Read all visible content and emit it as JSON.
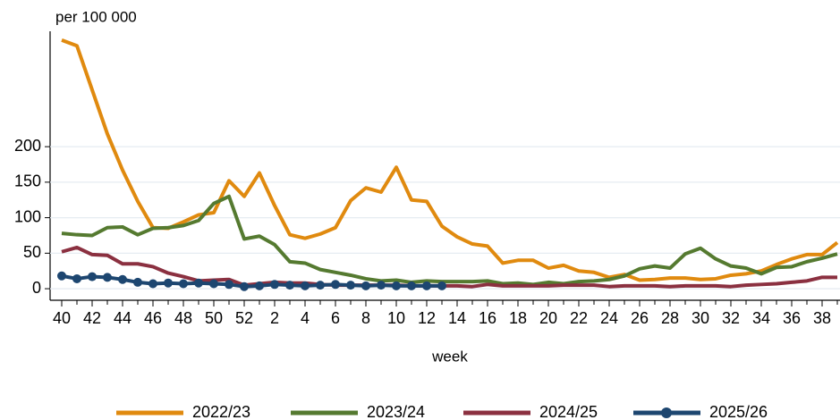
{
  "chart_data": {
    "type": "line",
    "y_label": "per 100 000",
    "x_label": "week",
    "categories": [
      "40",
      null,
      "42",
      null,
      "44",
      null,
      "46",
      null,
      "48",
      null,
      "50",
      null,
      "52",
      null,
      "2",
      null,
      "4",
      null,
      "6",
      null,
      "8",
      null,
      "10",
      null,
      "12",
      null,
      "14",
      null,
      "16",
      null,
      "18",
      null,
      "20",
      null,
      "22",
      null,
      "24",
      null,
      "26",
      null,
      "28",
      null,
      "30",
      null,
      "32",
      null,
      "34",
      null,
      "36",
      null,
      "38",
      null
    ],
    "ylim": [
      -15,
      365
    ],
    "yticks": [
      0,
      50,
      100,
      150,
      200
    ],
    "grid": true,
    "legend": "bottom",
    "series": [
      {
        "name": "2022/23",
        "color": "#e08a0f",
        "marker": false,
        "values": [
          350,
          342,
          280,
          218,
          167,
          123,
          86,
          85,
          94,
          104,
          107,
          152,
          130,
          163,
          117,
          76,
          71,
          77,
          86,
          124,
          142,
          136,
          171,
          125,
          123,
          88,
          73,
          63,
          60,
          36,
          40,
          40,
          29,
          33,
          25,
          23,
          16,
          20,
          12,
          13,
          15,
          15,
          13,
          14,
          19,
          21,
          25,
          34,
          42,
          48,
          48,
          65
        ]
      },
      {
        "name": "2023/24",
        "color": "#557a30",
        "marker": false,
        "values": [
          78,
          76,
          75,
          86,
          87,
          76,
          85,
          86,
          89,
          96,
          120,
          130,
          70,
          74,
          62,
          38,
          36,
          27,
          23,
          19,
          14,
          11,
          12,
          9,
          11,
          10,
          10,
          10,
          11,
          7,
          8,
          6,
          9,
          7,
          10,
          11,
          13,
          18,
          28,
          32,
          29,
          49,
          57,
          42,
          32,
          29,
          21,
          30,
          31,
          38,
          43,
          49
        ]
      },
      {
        "name": "2024/25",
        "color": "#8b3040",
        "marker": false,
        "values": [
          52,
          58,
          48,
          47,
          35,
          35,
          31,
          22,
          17,
          11,
          12,
          13,
          5,
          7,
          9,
          8,
          8,
          6,
          5,
          5,
          5,
          5,
          5,
          4,
          4,
          4,
          4,
          3,
          6,
          4,
          4,
          4,
          4,
          5,
          5,
          5,
          3,
          4,
          4,
          4,
          3,
          4,
          4,
          4,
          3,
          5,
          6,
          7,
          9,
          11,
          16,
          16
        ]
      },
      {
        "name": "2025/26",
        "color": "#1d4670",
        "marker": true,
        "values": [
          18,
          14,
          17,
          16,
          13,
          9,
          7,
          8,
          7,
          8,
          7,
          6,
          3,
          4,
          6,
          5,
          4,
          5,
          6,
          5,
          4,
          5,
          4,
          4,
          4,
          4,
          null,
          null,
          null,
          null,
          null,
          null,
          null,
          null,
          null,
          null,
          null,
          null,
          null,
          null,
          null,
          null,
          null,
          null,
          null,
          null,
          null,
          null,
          null,
          null,
          null,
          null
        ]
      }
    ]
  }
}
